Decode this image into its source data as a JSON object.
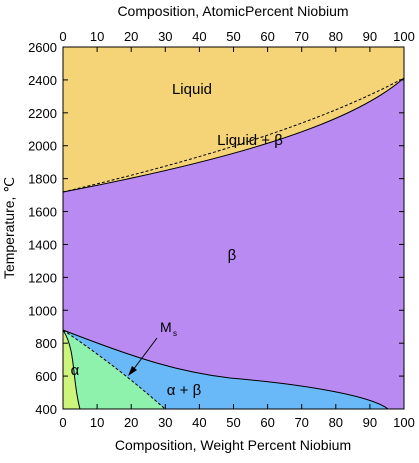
{
  "diagram": {
    "top_axis_title": "Composition, AtomicPercent Niobium",
    "bottom_axis_title": "Composition, Weight Percent Niobium",
    "left_axis_title": "Temperature, ℃",
    "x_ticks": [
      "0",
      "10",
      "20",
      "30",
      "40",
      "50",
      "60",
      "70",
      "80",
      "90",
      "100"
    ],
    "top_ticks": [
      "0",
      "10",
      "20",
      "30",
      "40",
      "50",
      "60",
      "70",
      "80",
      "90",
      "100"
    ],
    "y_ticks": [
      "400",
      "600",
      "800",
      "1000",
      "1200",
      "1400",
      "1600",
      "1800",
      "2000",
      "2200",
      "2400",
      "2600"
    ],
    "regions": {
      "liquid": "Liquid",
      "liquid_beta": "Liquid + β",
      "beta": "β",
      "alpha": "α",
      "alpha_beta": "α + β",
      "ms_main": "M",
      "ms_sub": "s"
    },
    "colors": {
      "liquid": "#f5d477",
      "beta": "#b98af2",
      "alpha": "#cdf57c",
      "alpha_prime": "#8ef2ad",
      "alpha_beta": "#69b8f7"
    }
  }
}
